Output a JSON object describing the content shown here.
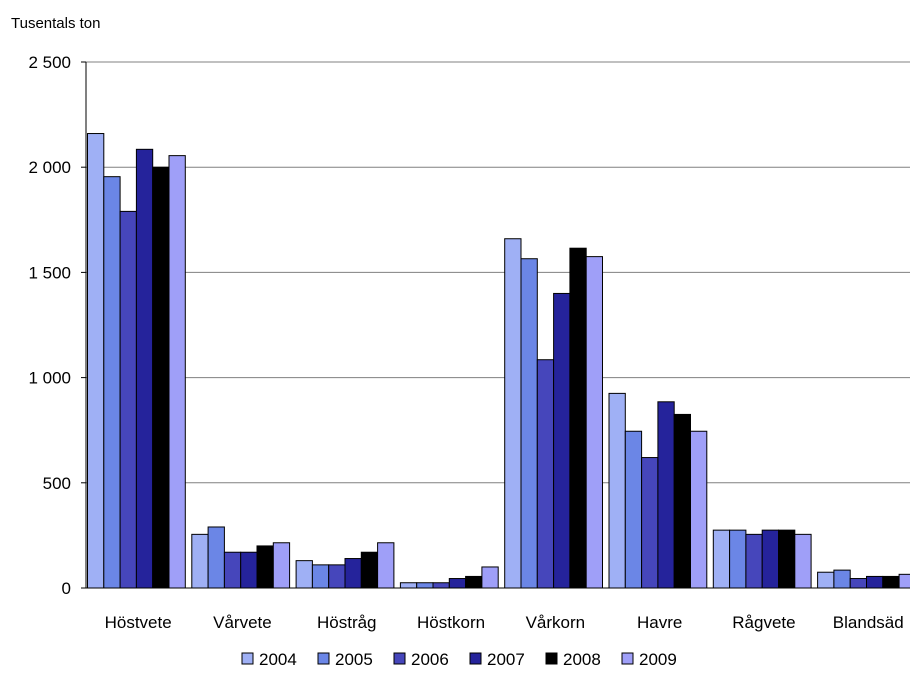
{
  "chart_data": {
    "type": "bar",
    "ylabel": "Tusentals ton",
    "xlabel": "",
    "ylim": [
      0,
      2500
    ],
    "yticks": [
      0,
      500,
      1000,
      1500,
      2000,
      2500
    ],
    "ytick_labels": [
      "0",
      "500",
      "1 000",
      "1 500",
      "2 000",
      "2 500"
    ],
    "grid": true,
    "legend_position": "bottom",
    "categories": [
      "Höstvete",
      "Vårvete",
      "Höstråg",
      "Höstkorn",
      "Vårkorn",
      "Havre",
      "Rågvete",
      "Blandsäd"
    ],
    "series": [
      {
        "name": "2004",
        "color": "#9fb0f5",
        "values": [
          2160,
          255,
          130,
          25,
          1660,
          925,
          275,
          75
        ]
      },
      {
        "name": "2005",
        "color": "#6b86e6",
        "values": [
          1955,
          290,
          110,
          25,
          1565,
          745,
          275,
          85
        ]
      },
      {
        "name": "2006",
        "color": "#4646bb",
        "values": [
          1790,
          170,
          110,
          25,
          1085,
          620,
          255,
          45
        ]
      },
      {
        "name": "2007",
        "color": "#25239b",
        "values": [
          2085,
          170,
          140,
          45,
          1400,
          885,
          275,
          55
        ]
      },
      {
        "name": "2008",
        "color": "#000000",
        "values": [
          2000,
          200,
          170,
          55,
          1615,
          825,
          275,
          55
        ]
      },
      {
        "name": "2009",
        "color": "#9f9ff8",
        "values": [
          2055,
          215,
          215,
          100,
          1575,
          745,
          255,
          65
        ]
      }
    ]
  }
}
